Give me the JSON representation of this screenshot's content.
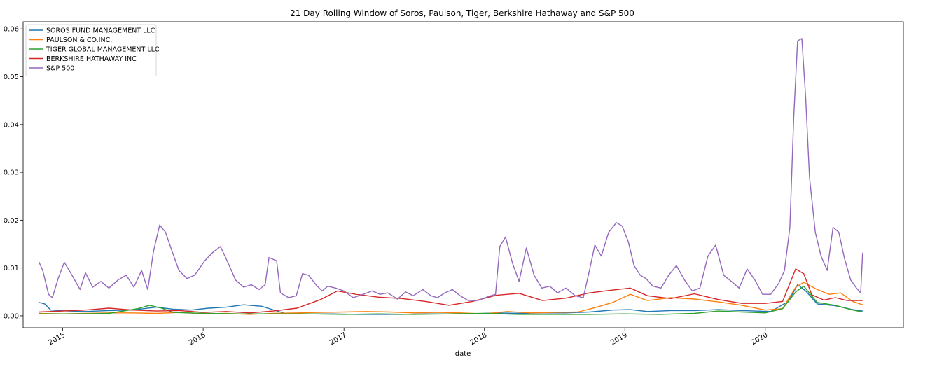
{
  "chart_data": {
    "type": "line",
    "title": "21 Day Rolling Window of Soros, Paulson, Tiger, Berkshire Hathaway and S&P 500",
    "xlabel": "date",
    "ylabel": "",
    "x_ticks": [
      "2015",
      "2016",
      "2017",
      "2018",
      "2019",
      "2020"
    ],
    "y_ticks": [
      "0.00",
      "0.01",
      "0.02",
      "0.03",
      "0.04",
      "0.05",
      "0.06"
    ],
    "ylim": [
      -0.0025,
      0.0615
    ],
    "xlim": [
      "2014-09-20",
      "2020-12-25"
    ],
    "grid": false,
    "legend_position": "top-left",
    "series": [
      {
        "name": "SOROS FUND MANAGEMENT LLC",
        "color": "#1f77b4",
        "x": [
          "2014-10-31",
          "2014-11-15",
          "2014-12-01",
          "2015-01-15",
          "2015-03-01",
          "2015-05-01",
          "2015-07-01",
          "2015-09-01",
          "2015-10-15",
          "2015-12-01",
          "2016-01-15",
          "2016-03-01",
          "2016-04-15",
          "2016-06-01",
          "2016-08-01",
          "2016-10-01",
          "2016-12-01",
          "2017-02-01",
          "2017-04-01",
          "2017-06-01",
          "2017-08-01",
          "2017-10-01",
          "2017-12-01",
          "2018-02-01",
          "2018-04-01",
          "2018-06-01",
          "2018-08-01",
          "2018-10-01",
          "2018-12-01",
          "2019-01-15",
          "2019-03-01",
          "2019-05-01",
          "2019-07-01",
          "2019-09-01",
          "2019-11-01",
          "2020-01-15",
          "2020-03-01",
          "2020-03-25",
          "2020-04-15",
          "2020-05-15",
          "2020-07-01",
          "2020-08-15",
          "2020-09-10"
        ],
        "values": [
          0.0028,
          0.0025,
          0.0012,
          0.001,
          0.0009,
          0.0011,
          0.0012,
          0.0018,
          0.0014,
          0.0012,
          0.0016,
          0.0018,
          0.0023,
          0.002,
          0.0005,
          0.0004,
          0.0004,
          0.0003,
          0.0003,
          0.0003,
          0.0004,
          0.0004,
          0.0004,
          0.0006,
          0.0005,
          0.0006,
          0.0006,
          0.0008,
          0.0012,
          0.0013,
          0.0009,
          0.0011,
          0.0011,
          0.0013,
          0.0011,
          0.0009,
          0.003,
          0.0065,
          0.0052,
          0.0025,
          0.0021,
          0.0013,
          0.001
        ]
      },
      {
        "name": "PAULSON & CO.INC.",
        "color": "#ff7f0e",
        "x": [
          "2014-10-31",
          "2015-01-01",
          "2015-03-01",
          "2015-05-01",
          "2015-07-01",
          "2015-09-01",
          "2015-11-01",
          "2016-01-01",
          "2016-03-01",
          "2016-05-01",
          "2016-07-01",
          "2016-09-01",
          "2016-11-01",
          "2017-01-01",
          "2017-03-01",
          "2017-05-01",
          "2017-07-01",
          "2017-09-01",
          "2017-11-01",
          "2018-01-01",
          "2018-03-01",
          "2018-05-01",
          "2018-07-01",
          "2018-09-01",
          "2018-10-15",
          "2018-12-01",
          "2019-01-15",
          "2019-03-01",
          "2019-05-01",
          "2019-07-01",
          "2019-09-01",
          "2019-11-01",
          "2020-01-01",
          "2020-02-15",
          "2020-03-20",
          "2020-04-10",
          "2020-05-15",
          "2020-06-15",
          "2020-07-15",
          "2020-08-15",
          "2020-09-10"
        ],
        "values": [
          0.0005,
          0.0004,
          0.0005,
          0.0006,
          0.0006,
          0.0005,
          0.0007,
          0.0004,
          0.0005,
          0.0003,
          0.0005,
          0.0006,
          0.0007,
          0.0008,
          0.0009,
          0.0008,
          0.0006,
          0.0007,
          0.0006,
          0.0004,
          0.0009,
          0.0006,
          0.0007,
          0.0008,
          0.0017,
          0.0028,
          0.0045,
          0.0032,
          0.0038,
          0.0035,
          0.0029,
          0.0022,
          0.0012,
          0.0015,
          0.006,
          0.007,
          0.0055,
          0.0045,
          0.0048,
          0.003,
          0.0023
        ]
      },
      {
        "name": "TIGER GLOBAL MANAGEMENT LLC",
        "color": "#2ca02c",
        "x": [
          "2014-10-31",
          "2015-02-01",
          "2015-05-01",
          "2015-07-15",
          "2015-08-15",
          "2015-09-15",
          "2015-10-15",
          "2016-01-01",
          "2016-04-01",
          "2016-07-01",
          "2016-10-01",
          "2017-01-01",
          "2017-04-01",
          "2017-07-01",
          "2017-10-01",
          "2018-01-01",
          "2018-04-01",
          "2018-07-01",
          "2018-10-01",
          "2019-01-01",
          "2019-04-01",
          "2019-07-01",
          "2019-09-01",
          "2019-11-01",
          "2020-01-01",
          "2020-02-15",
          "2020-03-20",
          "2020-04-10",
          "2020-05-15",
          "2020-07-01",
          "2020-08-15",
          "2020-09-10"
        ],
        "values": [
          0.0004,
          0.0004,
          0.0005,
          0.0015,
          0.0022,
          0.0016,
          0.0007,
          0.0005,
          0.0004,
          0.0004,
          0.0004,
          0.0003,
          0.0004,
          0.0003,
          0.0004,
          0.0005,
          0.0003,
          0.0003,
          0.0003,
          0.0004,
          0.0003,
          0.0005,
          0.001,
          0.0008,
          0.0006,
          0.0015,
          0.005,
          0.0062,
          0.0028,
          0.0022,
          0.0012,
          0.0008
        ]
      },
      {
        "name": "BERKSHIRE HATHAWAY INC",
        "color": "#d62728",
        "x": [
          "2014-10-31",
          "2015-01-01",
          "2015-03-01",
          "2015-05-01",
          "2015-07-01",
          "2015-09-01",
          "2015-11-01",
          "2016-01-01",
          "2016-03-01",
          "2016-05-01",
          "2016-07-01",
          "2016-09-01",
          "2016-11-01",
          "2016-12-15",
          "2017-02-01",
          "2017-04-01",
          "2017-06-01",
          "2017-08-01",
          "2017-10-01",
          "2017-12-01",
          "2018-02-01",
          "2018-04-01",
          "2018-06-01",
          "2018-08-01",
          "2018-10-01",
          "2018-12-01",
          "2019-01-15",
          "2019-03-01",
          "2019-05-01",
          "2019-07-01",
          "2019-09-01",
          "2019-11-01",
          "2020-01-01",
          "2020-02-15",
          "2020-03-20",
          "2020-04-10",
          "2020-05-01",
          "2020-06-01",
          "2020-07-01",
          "2020-08-01",
          "2020-09-10"
        ],
        "values": [
          0.0008,
          0.001,
          0.0012,
          0.0016,
          0.0012,
          0.001,
          0.0011,
          0.0007,
          0.0009,
          0.0006,
          0.001,
          0.0016,
          0.0034,
          0.0052,
          0.0045,
          0.0039,
          0.0036,
          0.003,
          0.0022,
          0.003,
          0.0043,
          0.0047,
          0.0032,
          0.0037,
          0.0048,
          0.0054,
          0.0058,
          0.0042,
          0.0036,
          0.0046,
          0.0034,
          0.0026,
          0.0026,
          0.003,
          0.0098,
          0.0088,
          0.0044,
          0.0033,
          0.0038,
          0.0032,
          0.0032
        ]
      },
      {
        "name": "S&P 500",
        "color": "#9467bd",
        "x": [
          "2014-10-31",
          "2014-11-10",
          "2014-11-25",
          "2014-12-05",
          "2014-12-20",
          "2015-01-05",
          "2015-01-25",
          "2015-02-15",
          "2015-03-01",
          "2015-03-20",
          "2015-04-10",
          "2015-05-01",
          "2015-05-25",
          "2015-06-15",
          "2015-07-05",
          "2015-07-25",
          "2015-08-10",
          "2015-08-25",
          "2015-09-10",
          "2015-09-25",
          "2015-10-10",
          "2015-10-30",
          "2015-11-20",
          "2015-12-10",
          "2016-01-05",
          "2016-01-25",
          "2016-02-15",
          "2016-03-05",
          "2016-03-25",
          "2016-04-15",
          "2016-05-05",
          "2016-05-25",
          "2016-06-10",
          "2016-06-20",
          "2016-07-10",
          "2016-07-20",
          "2016-08-10",
          "2016-08-30",
          "2016-09-15",
          "2016-10-01",
          "2016-10-20",
          "2016-11-05",
          "2016-11-20",
          "2016-12-10",
          "2017-01-01",
          "2017-01-25",
          "2017-02-20",
          "2017-03-15",
          "2017-04-05",
          "2017-04-25",
          "2017-05-20",
          "2017-06-10",
          "2017-06-30",
          "2017-07-25",
          "2017-08-15",
          "2017-09-01",
          "2017-09-20",
          "2017-10-10",
          "2017-10-30",
          "2017-11-20",
          "2017-12-15",
          "2018-01-10",
          "2018-01-30",
          "2018-02-10",
          "2018-02-25",
          "2018-03-15",
          "2018-04-01",
          "2018-04-20",
          "2018-05-10",
          "2018-05-30",
          "2018-06-20",
          "2018-07-10",
          "2018-08-01",
          "2018-08-25",
          "2018-09-15",
          "2018-10-01",
          "2018-10-15",
          "2018-11-01",
          "2018-11-20",
          "2018-12-10",
          "2018-12-25",
          "2019-01-10",
          "2019-01-25",
          "2019-02-10",
          "2019-02-25",
          "2019-03-15",
          "2019-04-05",
          "2019-04-25",
          "2019-05-15",
          "2019-06-05",
          "2019-06-25",
          "2019-07-15",
          "2019-08-05",
          "2019-08-25",
          "2019-09-15",
          "2019-10-05",
          "2019-10-25",
          "2019-11-15",
          "2019-12-05",
          "2019-12-25",
          "2020-01-15",
          "2020-02-05",
          "2020-02-20",
          "2020-03-05",
          "2020-03-15",
          "2020-03-25",
          "2020-04-05",
          "2020-04-15",
          "2020-04-25",
          "2020-05-10",
          "2020-05-25",
          "2020-06-10",
          "2020-06-25",
          "2020-07-10",
          "2020-07-25",
          "2020-08-10",
          "2020-08-25",
          "2020-09-05",
          "2020-09-10"
        ],
        "values": [
          0.0113,
          0.0095,
          0.0045,
          0.0038,
          0.0078,
          0.0112,
          0.0085,
          0.0055,
          0.009,
          0.006,
          0.0072,
          0.0058,
          0.0075,
          0.0085,
          0.006,
          0.0095,
          0.0055,
          0.0135,
          0.019,
          0.0175,
          0.014,
          0.0095,
          0.0078,
          0.0085,
          0.0115,
          0.0132,
          0.0145,
          0.0112,
          0.0075,
          0.006,
          0.0065,
          0.0055,
          0.0065,
          0.0122,
          0.0115,
          0.0048,
          0.0038,
          0.0042,
          0.0088,
          0.0085,
          0.0065,
          0.0052,
          0.0062,
          0.0058,
          0.0052,
          0.0038,
          0.0045,
          0.0052,
          0.0045,
          0.0048,
          0.0035,
          0.005,
          0.0042,
          0.0055,
          0.0042,
          0.0038,
          0.0048,
          0.0055,
          0.0042,
          0.0032,
          0.0032,
          0.004,
          0.0045,
          0.0145,
          0.0165,
          0.011,
          0.0072,
          0.0142,
          0.0085,
          0.0058,
          0.0062,
          0.0048,
          0.0058,
          0.0042,
          0.0038,
          0.0095,
          0.0148,
          0.0125,
          0.0175,
          0.0195,
          0.0188,
          0.0155,
          0.0105,
          0.0085,
          0.0078,
          0.0062,
          0.0058,
          0.0085,
          0.0105,
          0.0075,
          0.0052,
          0.0058,
          0.0125,
          0.0148,
          0.0085,
          0.0072,
          0.0058,
          0.0098,
          0.0075,
          0.0045,
          0.0045,
          0.0068,
          0.0095,
          0.0185,
          0.0415,
          0.0575,
          0.058,
          0.0455,
          0.029,
          0.0175,
          0.0125,
          0.0095,
          0.0185,
          0.0175,
          0.012,
          0.0075,
          0.0058,
          0.0048,
          0.0132
        ]
      }
    ]
  }
}
